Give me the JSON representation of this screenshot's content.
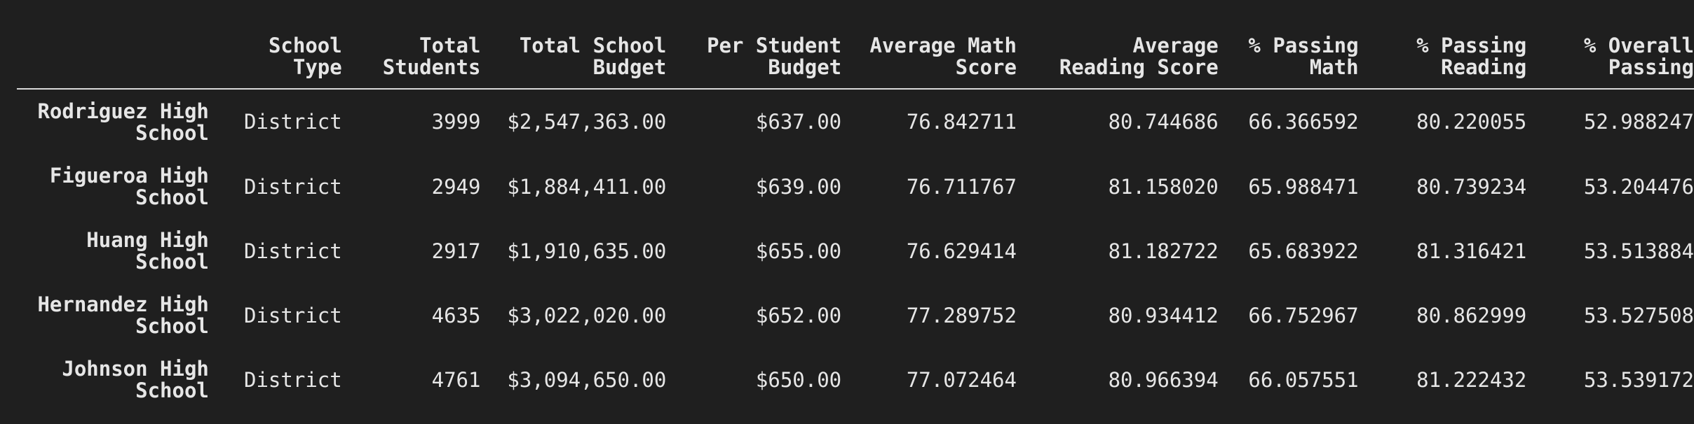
{
  "table": {
    "columns": [
      [
        "School",
        "Type"
      ],
      [
        "Total",
        "Students"
      ],
      [
        "Total School",
        "Budget"
      ],
      [
        "Per Student",
        "Budget"
      ],
      [
        "Average Math",
        "Score"
      ],
      [
        "Average",
        "Reading Score"
      ],
      [
        "% Passing",
        "Math"
      ],
      [
        "% Passing",
        "Reading"
      ],
      [
        "% Overall",
        "Passing"
      ]
    ],
    "rows": [
      {
        "index": [
          "Rodriguez High",
          "School"
        ],
        "cells": [
          "District",
          "3999",
          "$2,547,363.00",
          "$637.00",
          "76.842711",
          "80.744686",
          "66.366592",
          "80.220055",
          "52.988247"
        ]
      },
      {
        "index": [
          "Figueroa High",
          "School"
        ],
        "cells": [
          "District",
          "2949",
          "$1,884,411.00",
          "$639.00",
          "76.711767",
          "81.158020",
          "65.988471",
          "80.739234",
          "53.204476"
        ]
      },
      {
        "index": [
          "Huang High",
          "School"
        ],
        "cells": [
          "District",
          "2917",
          "$1,910,635.00",
          "$655.00",
          "76.629414",
          "81.182722",
          "65.683922",
          "81.316421",
          "53.513884"
        ]
      },
      {
        "index": [
          "Hernandez High",
          "School"
        ],
        "cells": [
          "District",
          "4635",
          "$3,022,020.00",
          "$652.00",
          "77.289752",
          "80.934412",
          "66.752967",
          "80.862999",
          "53.527508"
        ]
      },
      {
        "index": [
          "Johnson High",
          "School"
        ],
        "cells": [
          "District",
          "4761",
          "$3,094,650.00",
          "$650.00",
          "77.072464",
          "80.966394",
          "66.057551",
          "81.222432",
          "53.539172"
        ]
      }
    ]
  }
}
